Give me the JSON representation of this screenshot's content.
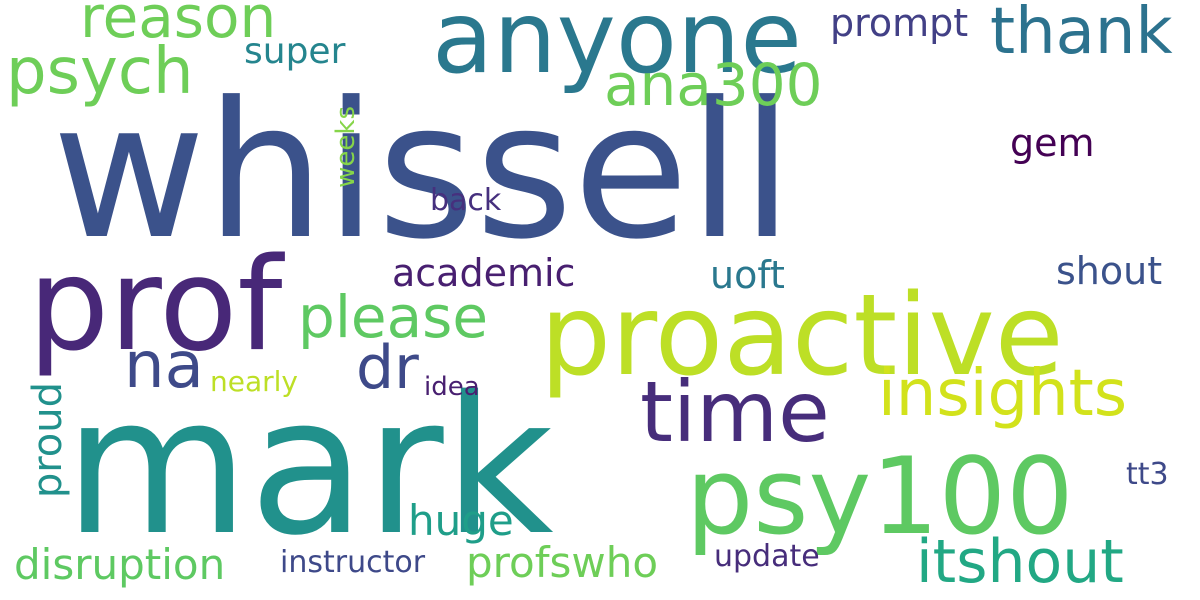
{
  "words": [
    {
      "text": "whissell",
      "color": "#3b528b"
    },
    {
      "text": "mark",
      "color": "#21918c"
    },
    {
      "text": "proactive",
      "color": "#bddf26"
    },
    {
      "text": "prof",
      "color": "#482878"
    },
    {
      "text": "anyone",
      "color": "#2a788e"
    },
    {
      "text": "psy100",
      "color": "#5ec962"
    },
    {
      "text": "time",
      "color": "#472d7b"
    },
    {
      "text": "insights",
      "color": "#d2e21b"
    },
    {
      "text": "reason",
      "color": "#6ece58"
    },
    {
      "text": "psych",
      "color": "#6ece58"
    },
    {
      "text": "thank",
      "color": "#2c728e"
    },
    {
      "text": "itshout",
      "color": "#22a884"
    },
    {
      "text": "ana300",
      "color": "#6ece58"
    },
    {
      "text": "please",
      "color": "#5ec962"
    },
    {
      "text": "na",
      "color": "#3e4a89"
    },
    {
      "text": "dr",
      "color": "#3e4a89"
    },
    {
      "text": "prompt",
      "color": "#424086"
    },
    {
      "text": "super",
      "color": "#25858e"
    },
    {
      "text": "academic",
      "color": "#481f70"
    },
    {
      "text": "uoft",
      "color": "#2a788e"
    },
    {
      "text": "shout",
      "color": "#3b528b"
    },
    {
      "text": "gem",
      "color": "#440154"
    },
    {
      "text": "back",
      "color": "#46307e"
    },
    {
      "text": "weeks",
      "color": "#86d549"
    },
    {
      "text": "proud",
      "color": "#21918c"
    },
    {
      "text": "nearly",
      "color": "#bddf26"
    },
    {
      "text": "idea",
      "color": "#481f70"
    },
    {
      "text": "huge",
      "color": "#1f9e89"
    },
    {
      "text": "tt3",
      "color": "#3e4989"
    },
    {
      "text": "disruption",
      "color": "#5ec962"
    },
    {
      "text": "instructor",
      "color": "#3e4989"
    },
    {
      "text": "profswho",
      "color": "#6ece58"
    },
    {
      "text": "update",
      "color": "#472d7b"
    }
  ]
}
